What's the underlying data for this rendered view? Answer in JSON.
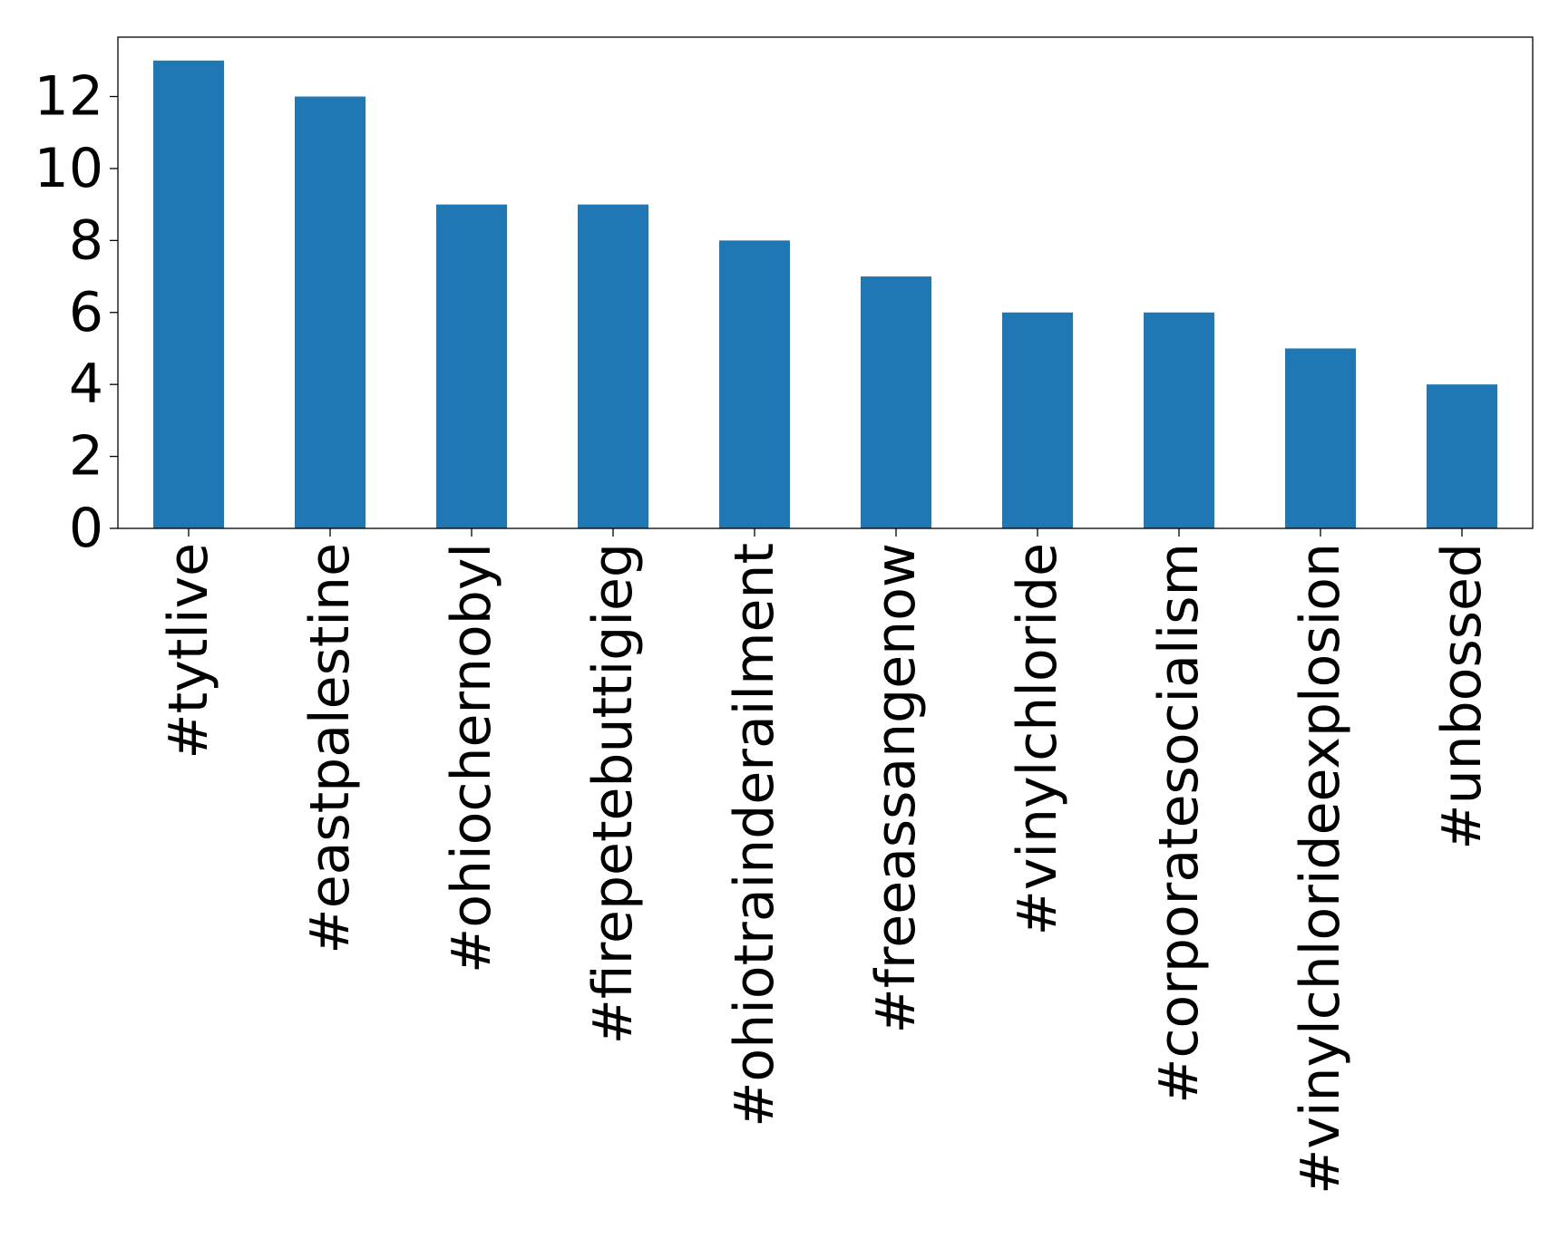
{
  "chart_data": {
    "type": "bar",
    "title": "",
    "xlabel": "",
    "ylabel": "",
    "categories": [
      "#tytlive",
      "#eastpalestine",
      "#ohiochernobyl",
      "#firepetebuttigieg",
      "#ohiotrainderailment",
      "#freeassangenow",
      "#vinylchloride",
      "#corporatesocialism",
      "#vinylchlorideexplosion",
      "#unbossed"
    ],
    "values": [
      13,
      12,
      9,
      9,
      8,
      7,
      6,
      6,
      5,
      4
    ],
    "ylim": [
      0,
      13.65
    ],
    "yticks": [
      0,
      2,
      4,
      6,
      8,
      10,
      12
    ],
    "grid": false,
    "legend": "none",
    "bar_color": "#1f77b4"
  }
}
